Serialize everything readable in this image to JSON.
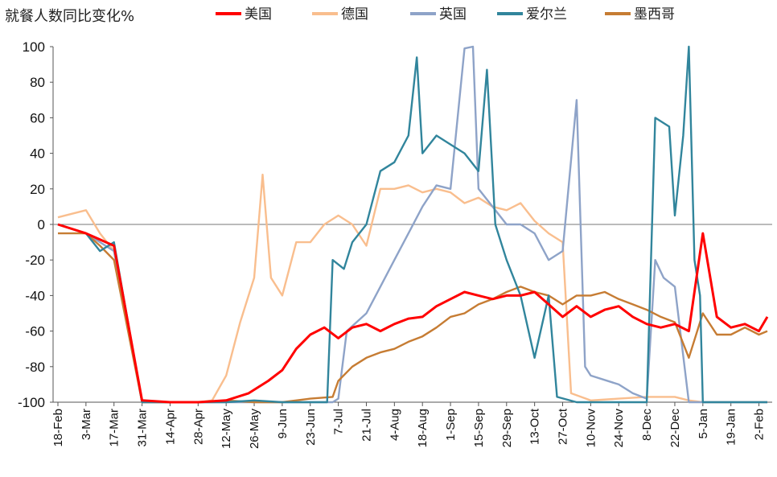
{
  "chart_data": {
    "type": "line",
    "ylabel": "就餐人数同比变化%",
    "ylim": [
      -100,
      100
    ],
    "yticks": [
      100,
      80,
      60,
      40,
      20,
      0,
      -20,
      -40,
      -60,
      -80,
      -100
    ],
    "xticks": [
      "18-Feb",
      "3-Mar",
      "17-Mar",
      "31-Mar",
      "14-Apr",
      "28-Apr",
      "12-May",
      "26-May",
      "9-Jun",
      "23-Jun",
      "7-Jul",
      "21-Jul",
      "4-Aug",
      "18-Aug",
      "1-Sep",
      "15-Sep",
      "29-Sep",
      "13-Oct",
      "27-Oct",
      "10-Nov",
      "24-Nov",
      "8-Dec",
      "22-Dec",
      "5-Jan",
      "19-Jan",
      "2-Feb"
    ],
    "x_unit": "weeks from 18-Feb",
    "legend_position": "top",
    "series": [
      {
        "name": "美国",
        "color": "#ff0000",
        "points": [
          [
            0,
            0
          ],
          [
            1,
            -5
          ],
          [
            2,
            -12
          ],
          [
            3,
            -99
          ],
          [
            4,
            -100
          ],
          [
            5,
            -100
          ],
          [
            6,
            -99
          ],
          [
            6.8,
            -95
          ],
          [
            7.5,
            -88
          ],
          [
            8,
            -82
          ],
          [
            8.5,
            -70
          ],
          [
            9,
            -62
          ],
          [
            9.5,
            -58
          ],
          [
            10,
            -64
          ],
          [
            10.5,
            -58
          ],
          [
            11,
            -56
          ],
          [
            11.5,
            -60
          ],
          [
            12,
            -56
          ],
          [
            12.5,
            -53
          ],
          [
            13,
            -52
          ],
          [
            13.5,
            -46
          ],
          [
            14,
            -42
          ],
          [
            14.5,
            -38
          ],
          [
            15,
            -40
          ],
          [
            15.5,
            -42
          ],
          [
            16,
            -40
          ],
          [
            16.5,
            -40
          ],
          [
            17,
            -38
          ],
          [
            17.5,
            -45
          ],
          [
            18,
            -52
          ],
          [
            18.5,
            -46
          ],
          [
            19,
            -52
          ],
          [
            19.5,
            -48
          ],
          [
            20,
            -46
          ],
          [
            20.5,
            -52
          ],
          [
            21,
            -56
          ],
          [
            21.5,
            -58
          ],
          [
            22,
            -56
          ],
          [
            22.5,
            -60
          ],
          [
            23,
            -5
          ],
          [
            23.5,
            -52
          ],
          [
            24,
            -58
          ],
          [
            24.5,
            -56
          ],
          [
            25,
            -60
          ],
          [
            25.3,
            -52
          ]
        ]
      },
      {
        "name": "德国",
        "color": "#f9be8e",
        "points": [
          [
            0,
            4
          ],
          [
            1,
            8
          ],
          [
            1.5,
            -5
          ],
          [
            2,
            -15
          ],
          [
            3,
            -100
          ],
          [
            4,
            -100
          ],
          [
            5,
            -100
          ],
          [
            5.5,
            -99
          ],
          [
            6,
            -85
          ],
          [
            6.5,
            -55
          ],
          [
            7,
            -30
          ],
          [
            7.3,
            28
          ],
          [
            7.6,
            -30
          ],
          [
            8,
            -40
          ],
          [
            8.5,
            -10
          ],
          [
            9,
            -10
          ],
          [
            9.5,
            0
          ],
          [
            10,
            5
          ],
          [
            10.5,
            0
          ],
          [
            11,
            -12
          ],
          [
            11.5,
            20
          ],
          [
            12,
            20
          ],
          [
            12.5,
            22
          ],
          [
            13,
            18
          ],
          [
            13.5,
            20
          ],
          [
            14,
            18
          ],
          [
            14.5,
            12
          ],
          [
            15,
            15
          ],
          [
            15.5,
            10
          ],
          [
            16,
            8
          ],
          [
            16.5,
            12
          ],
          [
            17,
            2
          ],
          [
            17.5,
            -5
          ],
          [
            18,
            -10
          ],
          [
            18.3,
            -95
          ],
          [
            19,
            -99
          ],
          [
            20,
            -98
          ],
          [
            21,
            -97
          ],
          [
            22,
            -97
          ],
          [
            22.5,
            -99
          ],
          [
            23,
            -100
          ],
          [
            24,
            -100
          ],
          [
            25,
            -100
          ],
          [
            25.3,
            -100
          ]
        ]
      },
      {
        "name": "英国",
        "color": "#8ea3c8",
        "points": [
          [
            0,
            0
          ],
          [
            1,
            -5
          ],
          [
            1.5,
            -10
          ],
          [
            2,
            -15
          ],
          [
            3,
            -100
          ],
          [
            4,
            -100
          ],
          [
            5,
            -100
          ],
          [
            6,
            -100
          ],
          [
            7,
            -100
          ],
          [
            8,
            -100
          ],
          [
            9,
            -100
          ],
          [
            9.8,
            -100
          ],
          [
            10,
            -98
          ],
          [
            10.3,
            -60
          ],
          [
            11,
            -50
          ],
          [
            11.5,
            -35
          ],
          [
            12,
            -20
          ],
          [
            12.5,
            -5
          ],
          [
            13,
            10
          ],
          [
            13.5,
            22
          ],
          [
            14,
            20
          ],
          [
            14.5,
            99
          ],
          [
            14.8,
            100
          ],
          [
            15,
            20
          ],
          [
            15.5,
            10
          ],
          [
            16,
            0
          ],
          [
            16.5,
            0
          ],
          [
            17,
            -5
          ],
          [
            17.5,
            -20
          ],
          [
            18,
            -15
          ],
          [
            18.5,
            70
          ],
          [
            18.8,
            -80
          ],
          [
            19,
            -85
          ],
          [
            20,
            -90
          ],
          [
            20.5,
            -95
          ],
          [
            21,
            -98
          ],
          [
            21.3,
            -20
          ],
          [
            21.6,
            -30
          ],
          [
            22,
            -35
          ],
          [
            22.5,
            -100
          ],
          [
            23,
            -100
          ],
          [
            24,
            -100
          ],
          [
            25,
            -100
          ],
          [
            25.3,
            -100
          ]
        ]
      },
      {
        "name": "爱尔兰",
        "color": "#31859c",
        "points": [
          [
            0,
            0
          ],
          [
            1,
            -5
          ],
          [
            1.5,
            -15
          ],
          [
            2,
            -10
          ],
          [
            3,
            -100
          ],
          [
            4,
            -100
          ],
          [
            5,
            -100
          ],
          [
            6,
            -100
          ],
          [
            7,
            -99
          ],
          [
            8,
            -100
          ],
          [
            9,
            -100
          ],
          [
            9.6,
            -100
          ],
          [
            9.8,
            -20
          ],
          [
            10.2,
            -25
          ],
          [
            10.5,
            -10
          ],
          [
            11,
            0
          ],
          [
            11.5,
            30
          ],
          [
            12,
            35
          ],
          [
            12.5,
            50
          ],
          [
            12.8,
            94
          ],
          [
            13,
            40
          ],
          [
            13.5,
            50
          ],
          [
            14,
            45
          ],
          [
            14.5,
            40
          ],
          [
            15,
            30
          ],
          [
            15.3,
            87
          ],
          [
            15.6,
            0
          ],
          [
            16,
            -20
          ],
          [
            16.5,
            -40
          ],
          [
            17,
            -75
          ],
          [
            17.5,
            -40
          ],
          [
            17.8,
            -97
          ],
          [
            18.5,
            -100
          ],
          [
            19,
            -100
          ],
          [
            20,
            -100
          ],
          [
            21,
            -100
          ],
          [
            21.3,
            60
          ],
          [
            21.8,
            55
          ],
          [
            22,
            5
          ],
          [
            22.3,
            50
          ],
          [
            22.5,
            100
          ],
          [
            22.7,
            -20
          ],
          [
            22.9,
            -40
          ],
          [
            23,
            -100
          ],
          [
            23.5,
            -100
          ],
          [
            24,
            -100
          ],
          [
            25,
            -100
          ],
          [
            25.3,
            -100
          ]
        ]
      },
      {
        "name": "墨西哥",
        "color": "#c67c33",
        "points": [
          [
            0,
            -5
          ],
          [
            1,
            -5
          ],
          [
            1.5,
            -12
          ],
          [
            2,
            -20
          ],
          [
            2.5,
            -60
          ],
          [
            3,
            -100
          ],
          [
            4,
            -100
          ],
          [
            5,
            -100
          ],
          [
            6,
            -99
          ],
          [
            7,
            -100
          ],
          [
            8,
            -100
          ],
          [
            9,
            -98
          ],
          [
            9.8,
            -97
          ],
          [
            10,
            -88
          ],
          [
            10.5,
            -80
          ],
          [
            11,
            -75
          ],
          [
            11.5,
            -72
          ],
          [
            12,
            -70
          ],
          [
            12.5,
            -66
          ],
          [
            13,
            -63
          ],
          [
            13.5,
            -58
          ],
          [
            14,
            -52
          ],
          [
            14.5,
            -50
          ],
          [
            15,
            -45
          ],
          [
            15.5,
            -42
          ],
          [
            16,
            -38
          ],
          [
            16.5,
            -35
          ],
          [
            17,
            -38
          ],
          [
            17.5,
            -40
          ],
          [
            18,
            -45
          ],
          [
            18.5,
            -40
          ],
          [
            19,
            -40
          ],
          [
            19.5,
            -38
          ],
          [
            20,
            -42
          ],
          [
            20.5,
            -45
          ],
          [
            21,
            -48
          ],
          [
            21.5,
            -52
          ],
          [
            22,
            -55
          ],
          [
            22.5,
            -75
          ],
          [
            23,
            -50
          ],
          [
            23.5,
            -62
          ],
          [
            24,
            -62
          ],
          [
            24.5,
            -58
          ],
          [
            25,
            -62
          ],
          [
            25.3,
            -60
          ]
        ]
      }
    ]
  }
}
